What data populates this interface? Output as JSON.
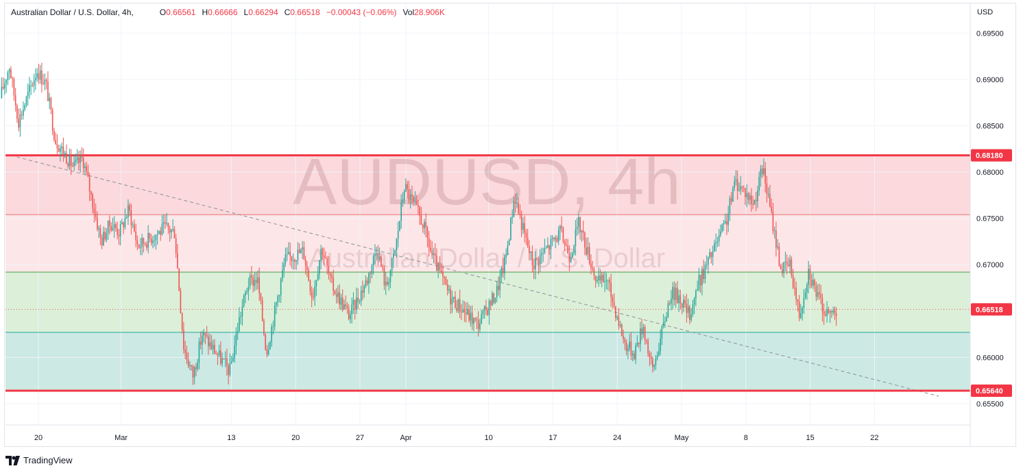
{
  "legend": {
    "symbol": "Australian Dollar / U.S. Dollar, 4h,",
    "open_key": "O",
    "open": "0.66561",
    "high_key": "H",
    "high": "0.66666",
    "low_key": "L",
    "low": "0.66294",
    "close_key": "C",
    "close": "0.66518",
    "change": "−0.00043 (−0.06%)",
    "vol_key": "Vol",
    "vol": "28.906K"
  },
  "watermark": {
    "line1": "AUDUSD, 4h",
    "line2": "Australian Dollar / U.S. Dollar"
  },
  "footer": {
    "brand": "TradingView"
  },
  "colors": {
    "up": "#26a69a",
    "down": "#ef5350",
    "resistance": "#f23645",
    "support": "#f23645",
    "upper_zone": "#fbd9dc",
    "mid_zone": "#dcefd9",
    "lower_zone": "#cce9e3"
  },
  "chart_data": {
    "type": "candlestick",
    "currency": "USD",
    "y_axis": {
      "labels": [
        "0.69500",
        "0.69000",
        "0.68500",
        "0.68000",
        "0.67500",
        "0.67000",
        "0.66518",
        "0.66000",
        "0.65640",
        "0.65500"
      ],
      "ticks": [
        0.695,
        0.69,
        0.685,
        0.68,
        0.675,
        0.67,
        0.66,
        0.655
      ],
      "range": [
        0.6527,
        0.6982
      ]
    },
    "x_axis": {
      "labels": [
        "20",
        "Mar",
        "13",
        "20",
        "27",
        "Apr",
        "10",
        "17",
        "24",
        "May",
        "8",
        "15",
        "22"
      ]
    },
    "levels": {
      "resistance": {
        "value": 0.6818,
        "label": "0.68180"
      },
      "support": {
        "value": 0.6564,
        "label": "0.65640"
      },
      "current": {
        "value": 0.66518,
        "label": "0.66518"
      },
      "zone_mid_line": 0.6754,
      "zone_split": 0.6692,
      "zone_low_line": 0.6627
    },
    "trendline": {
      "from": [
        "Feb 17",
        0.6818
      ],
      "to": [
        "May 29",
        0.6558
      ]
    },
    "path_keypoints": [
      [
        0.688,
        "Feb 16"
      ],
      [
        0.6915,
        "Feb 17"
      ],
      [
        0.6855,
        "Feb 18"
      ],
      [
        0.691,
        "Feb 20"
      ],
      [
        0.6895,
        "Feb 21"
      ],
      [
        0.6835,
        "Feb 22"
      ],
      [
        0.6805,
        "Feb 24"
      ],
      [
        0.6815,
        "Feb 25"
      ],
      [
        0.6725,
        "Feb 27"
      ],
      [
        0.6745,
        "Feb 28"
      ],
      [
        0.6735,
        "Mar 1"
      ],
      [
        0.676,
        "Mar 2"
      ],
      [
        0.672,
        "Mar 3"
      ],
      [
        0.674,
        "Mar 6"
      ],
      [
        0.6735,
        "Mar 7"
      ],
      [
        0.661,
        "Mar 8"
      ],
      [
        0.658,
        "Mar 9"
      ],
      [
        0.6625,
        "Mar 10"
      ],
      [
        0.6585,
        "Mar 13"
      ],
      [
        0.664,
        "Mar 14"
      ],
      [
        0.668,
        "Mar 15"
      ],
      [
        0.6685,
        "Mar 16"
      ],
      [
        0.6605,
        "Mar 17"
      ],
      [
        0.6705,
        "Mar 19"
      ],
      [
        0.6715,
        "Mar 21"
      ],
      [
        0.6665,
        "Mar 22"
      ],
      [
        0.672,
        "Mar 23"
      ],
      [
        0.668,
        "Mar 24"
      ],
      [
        0.6645,
        "Mar 26"
      ],
      [
        0.6685,
        "Mar 28"
      ],
      [
        0.672,
        "Mar 29"
      ],
      [
        0.6675,
        "Mar 30"
      ],
      [
        0.6715,
        "Mar 31"
      ],
      [
        0.6785,
        "Apr 1"
      ],
      [
        0.6745,
        "Apr 3"
      ],
      [
        0.671,
        "Apr 4"
      ],
      [
        0.6665,
        "Apr 6"
      ],
      [
        0.6635,
        "Apr 9"
      ],
      [
        0.667,
        "Apr 11"
      ],
      [
        0.6705,
        "Apr 12"
      ],
      [
        0.6775,
        "Apr 13"
      ],
      [
        0.6735,
        "Apr 14"
      ],
      [
        0.67,
        "Apr 15"
      ],
      [
        0.6735,
        "Apr 18"
      ],
      [
        0.671,
        "Apr 19"
      ],
      [
        0.6745,
        "Apr 20"
      ],
      [
        0.668,
        "Apr 22"
      ],
      [
        0.6685,
        "Apr 23"
      ],
      [
        0.6615,
        "Apr 25"
      ],
      [
        0.6605,
        "Apr 26"
      ],
      [
        0.6635,
        "Apr 27"
      ],
      [
        0.6585,
        "Apr 28"
      ],
      [
        0.6625,
        "Apr 29"
      ],
      [
        0.667,
        "Apr 30"
      ],
      [
        0.6665,
        "May 1"
      ],
      [
        0.6645,
        "May 2"
      ],
      [
        0.668,
        "May 3"
      ],
      [
        0.6745,
        "May 6"
      ],
      [
        0.679,
        "May 7"
      ],
      [
        0.678,
        "May 8"
      ],
      [
        0.6765,
        "May 9"
      ],
      [
        0.6805,
        "May 10"
      ],
      [
        0.6695,
        "May 12"
      ],
      [
        0.67,
        "May 13"
      ],
      [
        0.6645,
        "May 14"
      ],
      [
        0.6695,
        "May 15"
      ],
      [
        0.6665,
        "May 16"
      ],
      [
        0.6645,
        "May 17"
      ],
      [
        0.6652,
        "May 18"
      ]
    ]
  }
}
